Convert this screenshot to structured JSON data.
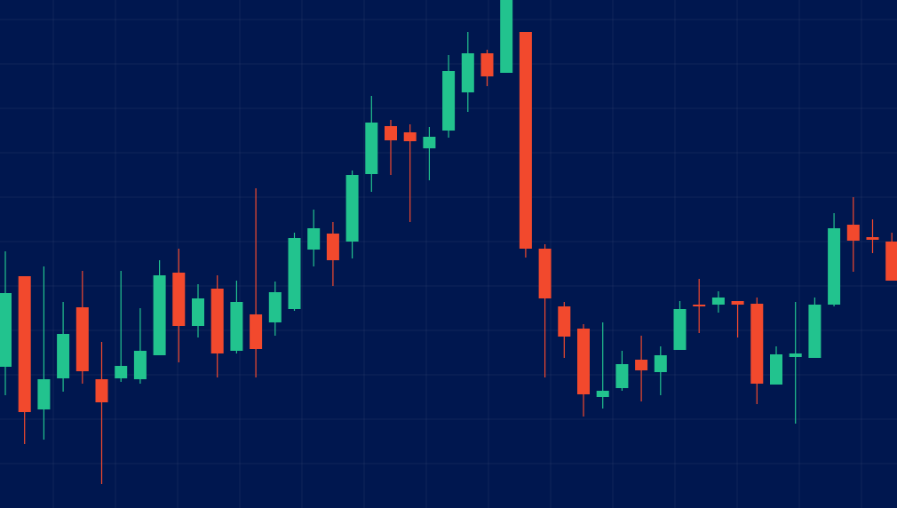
{
  "chart_data": {
    "type": "candlestick",
    "up_color": "#22c38e",
    "down_color": "#f2492d",
    "background": "#00174f",
    "grid": true,
    "ylim": [
      0,
      572
    ],
    "yticks": [
      50,
      100,
      150,
      200,
      250,
      300,
      350,
      400,
      450,
      500,
      550
    ],
    "open": [
      159,
      261,
      111,
      146,
      226,
      145,
      146,
      145,
      172,
      265,
      205,
      247,
      177,
      218,
      209,
      224,
      291,
      309,
      300,
      376,
      430,
      423,
      405,
      425,
      468,
      512,
      490,
      536,
      292,
      227,
      202,
      125,
      135,
      167,
      153,
      178,
      229,
      229,
      233,
      230,
      139,
      170,
      169,
      229,
      319,
      305,
      300
    ],
    "high": [
      289,
      261,
      272,
      232,
      267,
      187,
      267,
      225,
      279,
      292,
      252,
      262,
      256,
      360,
      255,
      310,
      336,
      322,
      380,
      464,
      437,
      432,
      429,
      510,
      536,
      516,
      572,
      536,
      297,
      232,
      207,
      209,
      177,
      194,
      182,
      233,
      258,
      244,
      233,
      237,
      182,
      232,
      237,
      332,
      350,
      325,
      310
    ],
    "low": [
      127,
      72,
      77,
      131,
      140,
      27,
      142,
      140,
      172,
      164,
      192,
      147,
      174,
      147,
      194,
      222,
      272,
      250,
      281,
      356,
      375,
      322,
      369,
      417,
      446,
      475,
      490,
      282,
      147,
      169,
      103,
      112,
      132,
      120,
      127,
      178,
      197,
      220,
      192,
      117,
      139,
      95,
      169,
      227,
      266,
      287,
      256
    ],
    "close": [
      242,
      108,
      145,
      196,
      154,
      119,
      160,
      177,
      262,
      205,
      236,
      174,
      232,
      179,
      243,
      304,
      315,
      279,
      375,
      434,
      414,
      413,
      418,
      492,
      512,
      486,
      572,
      292,
      236,
      193,
      128,
      132,
      162,
      155,
      172,
      224,
      227,
      237,
      229,
      140,
      173,
      174,
      229,
      315,
      301,
      302,
      256
    ]
  }
}
